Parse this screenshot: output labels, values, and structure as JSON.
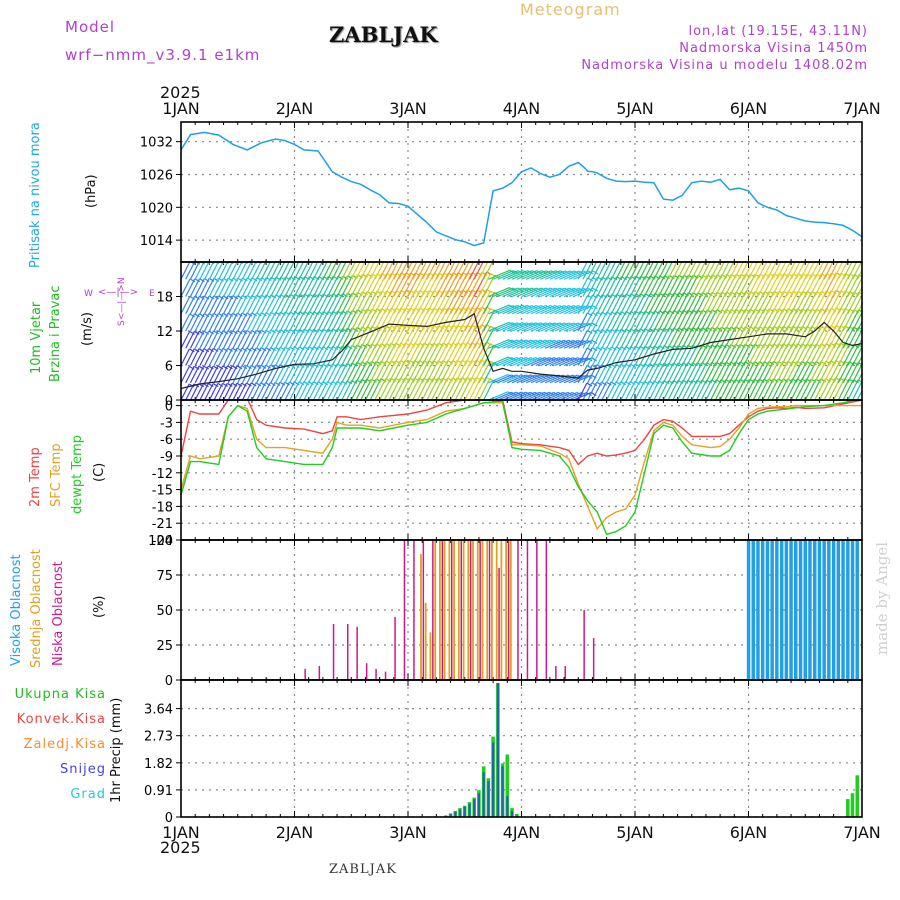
{
  "header": {
    "model_label": "Model",
    "model_name": "wrf−nmm_v3.9.1  e1km",
    "station_title": "ZABLJAK",
    "product": "Meteogram",
    "coords": "lon,lat (19.15E, 43.11N)",
    "elevation": "Nadmorska Visina 1450m",
    "model_elevation": "Nadmorska Visina u modelu 1408.02m",
    "footer_station": "ZABLJAK",
    "watermark": "made by Angel",
    "year": "2025"
  },
  "colors": {
    "pressure": "#1ea0e6",
    "temp2m": "#ee4444",
    "sfc": "#e8a020",
    "dewpt": "#22cc22",
    "high_cloud": "#22a0e6",
    "mid_cloud": "#e0a020",
    "low_cloud": "#cc1a88",
    "wind_text": "#22bb22",
    "wind_compass": "#b040d0",
    "snow": "#4444dd",
    "hail": "#22cccc",
    "conv": "#ee4444",
    "frozen": "#ff8a30"
  },
  "chart_data": [
    {
      "type": "line",
      "panel": "pressure",
      "ylabel_lines": [
        "Pritisak na nivou mora",
        "(hPa)"
      ],
      "ylim": [
        1010,
        1035.6
      ],
      "yticks": [
        1014,
        1020,
        1026,
        1032
      ],
      "xlim": [
        0,
        144
      ],
      "x_categories": [
        "1JAN",
        "2JAN",
        "3JAN",
        "4JAN",
        "5JAN",
        "6JAN",
        "7JAN"
      ],
      "grid": true,
      "series": [
        {
          "color_key": "pressure",
          "x": [
            0,
            2,
            5,
            8,
            11,
            14,
            17,
            20,
            22,
            24,
            26,
            29,
            32,
            34,
            36,
            38,
            40,
            42,
            44,
            46,
            48,
            50,
            52,
            54,
            56,
            58,
            60,
            62,
            64,
            66,
            68,
            70,
            72,
            74,
            76,
            78,
            80,
            82,
            84,
            85,
            86,
            87,
            88,
            90,
            92,
            94,
            96,
            98,
            100,
            102,
            104,
            106,
            108,
            110,
            112,
            114,
            116,
            118,
            120,
            122,
            124,
            126,
            128,
            130,
            132,
            134,
            136,
            138,
            140,
            142,
            144
          ],
          "y": [
            1030.5,
            1033.3,
            1033.7,
            1033.2,
            1031.5,
            1030.5,
            1031.8,
            1032.5,
            1032.2,
            1031.5,
            1030.5,
            1030.3,
            1026.5,
            1025.5,
            1024.7,
            1024.2,
            1023.2,
            1022.3,
            1020.8,
            1020.7,
            1020.2,
            1018.7,
            1017.2,
            1015.5,
            1014.8,
            1014.1,
            1013.7,
            1013.0,
            1013.5,
            1023.0,
            1023.5,
            1024.5,
            1026.5,
            1027.2,
            1026.2,
            1025.5,
            1026.0,
            1027.5,
            1028.2,
            1027.5,
            1026.6,
            1026.5,
            1026.3,
            1025.3,
            1024.8,
            1024.7,
            1024.8,
            1024.6,
            1024.5,
            1021.5,
            1021.3,
            1022.2,
            1024.5,
            1024.8,
            1024.6,
            1025.1,
            1023.2,
            1023.5,
            1023.0,
            1020.8,
            1020.0,
            1019.5,
            1018.5,
            1018.0,
            1017.5,
            1017.3,
            1017.2,
            1017.0,
            1016.7,
            1015.8,
            1014.6
          ]
        }
      ]
    },
    {
      "type": "line",
      "panel": "wind",
      "ylabel_lines": [
        "10m Vjetar",
        "Brzina i Pravac",
        "(m/s)"
      ],
      "compass": {
        "w": "W",
        "e": "E",
        "n": "N",
        "s": "S"
      },
      "ylim": [
        0,
        24
      ],
      "yticks": [
        0,
        6,
        12,
        18
      ],
      "xlim": [
        0,
        144
      ],
      "grid": true,
      "series": [
        {
          "name": "wind speed",
          "x": [
            0,
            4,
            8,
            12,
            16,
            20,
            24,
            28,
            32,
            34,
            36,
            40,
            44,
            48,
            52,
            56,
            60,
            62,
            64,
            66,
            68,
            70,
            72,
            76,
            80,
            84,
            86,
            88,
            92,
            96,
            100,
            104,
            108,
            112,
            116,
            120,
            124,
            128,
            132,
            134,
            136,
            138,
            140,
            142,
            144
          ],
          "y": [
            2.0,
            2.8,
            3.2,
            3.7,
            4.5,
            5.5,
            6.2,
            6.3,
            7.0,
            8.5,
            10.5,
            11.8,
            13.2,
            13.0,
            12.8,
            13.5,
            14.0,
            15.0,
            9.0,
            5.0,
            5.5,
            5.0,
            5.0,
            4.5,
            4.2,
            3.8,
            5.2,
            5.5,
            6.5,
            7.0,
            8.0,
            8.8,
            9.0,
            10.0,
            10.5,
            11.0,
            11.5,
            11.5,
            11.0,
            12.0,
            13.5,
            12.0,
            10.0,
            9.5,
            9.8
          ]
        }
      ]
    },
    {
      "type": "line",
      "panel": "temperature",
      "ylabel_lines": [
        "2m Temp",
        "SFC Temp",
        "dewpt Temp",
        "(C)"
      ],
      "ylim": [
        -24,
        1
      ],
      "yticks": [
        -24,
        -21,
        -18,
        -15,
        -12,
        -9,
        -6,
        -3,
        0
      ],
      "xlim": [
        0,
        144
      ],
      "grid": true,
      "series": [
        {
          "name": "2m Temp",
          "color_key": "temp2m",
          "x": [
            0,
            2,
            4,
            8,
            10,
            12,
            14,
            16,
            18,
            22,
            26,
            30,
            32,
            33,
            35,
            38,
            42,
            48,
            52,
            56,
            60,
            64,
            68,
            70,
            72,
            76,
            80,
            82,
            84,
            86,
            88,
            90,
            92,
            94,
            96,
            98,
            100,
            102,
            104,
            106,
            108,
            112,
            114,
            116,
            118,
            120,
            122,
            124,
            126,
            128,
            130,
            132,
            136,
            140,
            144
          ],
          "y": [
            -9.0,
            -1.0,
            -1.5,
            -1.5,
            1.0,
            1.5,
            1.3,
            -2.5,
            -3.5,
            -4.0,
            -4.2,
            -5.0,
            -4.5,
            -2.0,
            -2.0,
            -2.5,
            -2.0,
            -1.5,
            -0.8,
            0.5,
            1.0,
            1.5,
            1.0,
            -6.5,
            -6.8,
            -7.0,
            -7.5,
            -8.0,
            -10.5,
            -9.0,
            -8.5,
            -9.0,
            -8.8,
            -8.5,
            -8.0,
            -6.0,
            -3.5,
            -2.5,
            -2.8,
            -4.0,
            -5.5,
            -5.5,
            -5.5,
            -5.0,
            -3.5,
            -2.0,
            -1.0,
            -0.5,
            -0.4,
            -0.5,
            -0.3,
            -0.5,
            -0.4,
            0.3,
            1.0
          ]
        },
        {
          "name": "SFC Temp",
          "color_key": "sfc",
          "x": [
            0,
            2,
            4,
            8,
            10,
            12,
            14,
            16,
            18,
            22,
            26,
            30,
            32,
            33,
            35,
            38,
            42,
            48,
            52,
            56,
            60,
            64,
            68,
            70,
            72,
            76,
            80,
            82,
            84,
            86,
            88,
            90,
            92,
            94,
            96,
            98,
            100,
            102,
            104,
            106,
            108,
            112,
            114,
            116,
            118,
            120,
            122,
            124,
            126,
            128,
            130,
            132,
            136,
            140,
            144
          ],
          "y": [
            -15.0,
            -9.0,
            -9.5,
            -9.0,
            -2.0,
            0.0,
            -0.5,
            -6.0,
            -7.5,
            -7.5,
            -8.0,
            -8.5,
            -6.0,
            -3.0,
            -3.5,
            -3.5,
            -4.0,
            -3.0,
            -2.5,
            -1.0,
            -0.5,
            0.5,
            0.5,
            -7.0,
            -7.0,
            -7.2,
            -8.5,
            -9.5,
            -14.0,
            -18.0,
            -22.0,
            -20.0,
            -19.0,
            -18.5,
            -16.0,
            -10.0,
            -4.5,
            -3.0,
            -3.5,
            -5.5,
            -7.0,
            -7.5,
            -7.3,
            -6.0,
            -4.0,
            -1.5,
            -0.5,
            -0.3,
            -0.2,
            -0.2,
            0.0,
            0.0,
            0.0,
            0.0,
            0.0
          ]
        },
        {
          "name": "dewpt Temp",
          "color_key": "dewpt",
          "x": [
            0,
            2,
            4,
            8,
            10,
            12,
            14,
            16,
            18,
            22,
            26,
            30,
            32,
            33,
            35,
            38,
            42,
            48,
            52,
            56,
            60,
            64,
            68,
            70,
            72,
            76,
            80,
            82,
            84,
            86,
            88,
            90,
            92,
            94,
            96,
            98,
            100,
            102,
            104,
            106,
            108,
            112,
            114,
            116,
            118,
            120,
            122,
            124,
            126,
            128,
            130,
            132,
            136,
            140,
            144
          ],
          "y": [
            -16.0,
            -10.0,
            -10.0,
            -10.5,
            -2.0,
            0.0,
            -1.0,
            -7.5,
            -9.5,
            -10.0,
            -10.5,
            -10.5,
            -7.5,
            -4.0,
            -4.0,
            -4.0,
            -4.5,
            -3.5,
            -3.0,
            -1.5,
            -0.5,
            0.5,
            0.8,
            -7.5,
            -7.8,
            -8.0,
            -9.0,
            -11.0,
            -14.5,
            -17.0,
            -19.0,
            -23.0,
            -22.5,
            -21.5,
            -19.0,
            -12.0,
            -5.0,
            -3.5,
            -4.0,
            -6.5,
            -8.5,
            -9.0,
            -9.0,
            -8.0,
            -5.0,
            -2.5,
            -1.5,
            -1.0,
            -0.8,
            -0.6,
            -0.4,
            -0.2,
            0.0,
            0.5,
            1.2
          ]
        }
      ]
    },
    {
      "type": "bar",
      "panel": "cloud",
      "ylabel_lines": [
        "Visoka Oblacnost",
        "Srednja Oblacnost",
        "Niska Oblacnost",
        "(%)"
      ],
      "ylim": [
        0,
        100
      ],
      "yticks": [
        0,
        25,
        50,
        75,
        100
      ],
      "xlim": [
        0,
        144
      ],
      "grid": true,
      "low": {
        "x": [
          12,
          15,
          18,
          21,
          24,
          26,
          29,
          32,
          35,
          37,
          39,
          41,
          43,
          45,
          47,
          49,
          51,
          53,
          55,
          57,
          59,
          61,
          63,
          65,
          67,
          69,
          71,
          73,
          75,
          77,
          79,
          81,
          83,
          85,
          87,
          89,
          91,
          93,
          95
        ],
        "y": [
          1,
          0,
          1,
          0,
          1,
          8,
          10,
          40,
          40,
          38,
          12,
          8,
          6,
          45,
          100,
          100,
          100,
          100,
          100,
          100,
          100,
          100,
          100,
          100,
          80,
          100,
          100,
          100,
          100,
          100,
          10,
          10,
          0,
          50,
          30,
          0,
          0,
          1,
          0
        ]
      },
      "mid": {
        "x": [
          51,
          52,
          53,
          54,
          55,
          56,
          57,
          58,
          59,
          60,
          61,
          62,
          63,
          64,
          65,
          66,
          67,
          68,
          69,
          70
        ],
        "y": [
          90,
          55,
          34,
          100,
          100,
          100,
          100,
          100,
          100,
          100,
          100,
          100,
          100,
          100,
          100,
          100,
          100,
          100,
          100,
          100
        ]
      },
      "high": {
        "x": [
          120,
          121,
          122,
          123,
          124,
          125,
          126,
          127,
          128,
          129,
          130,
          131,
          132,
          133,
          134,
          135,
          136,
          137,
          138,
          139,
          140,
          141,
          142,
          143
        ],
        "y": [
          100,
          100,
          100,
          100,
          100,
          100,
          100,
          100,
          100,
          100,
          100,
          100,
          100,
          100,
          100,
          100,
          100,
          100,
          100,
          100,
          100,
          100,
          100,
          100
        ]
      }
    },
    {
      "type": "bar",
      "panel": "precip",
      "ylabel_lines": [
        "1hr Precip (mm)"
      ],
      "legend": [
        "Ukupna Kisa",
        "Konvek.Kisa",
        "Zaledj.Kisa",
        "Snijeg",
        "Grad"
      ],
      "ylim": [
        0,
        4.6
      ],
      "yticks": [
        0,
        0.91,
        1.82,
        2.73,
        3.64
      ],
      "xlim": [
        0,
        144
      ],
      "x_categories": [
        "1JAN",
        "2JAN",
        "3JAN",
        "4JAN",
        "5JAN",
        "6JAN",
        "7JAN"
      ],
      "grid": true,
      "total": {
        "x": [
          56,
          57,
          58,
          59,
          60,
          61,
          62,
          63,
          64,
          65,
          66,
          67,
          68,
          69,
          70,
          71,
          141,
          142,
          143
        ],
        "y": [
          0.05,
          0.12,
          0.2,
          0.3,
          0.38,
          0.5,
          0.65,
          0.9,
          1.7,
          1.3,
          2.7,
          4.5,
          1.8,
          2.1,
          0.3,
          0.1,
          0.6,
          0.8,
          1.4
        ]
      },
      "snow": {
        "x": [
          56,
          57,
          58,
          59,
          60,
          61,
          62,
          63,
          64,
          65,
          66,
          67,
          68,
          69,
          70,
          71
        ],
        "y": [
          0.05,
          0.1,
          0.18,
          0.25,
          0.35,
          0.45,
          0.6,
          0.8,
          1.5,
          1.2,
          2.5,
          4.5,
          1.7,
          0.7,
          0.2,
          0.05
        ]
      }
    }
  ]
}
